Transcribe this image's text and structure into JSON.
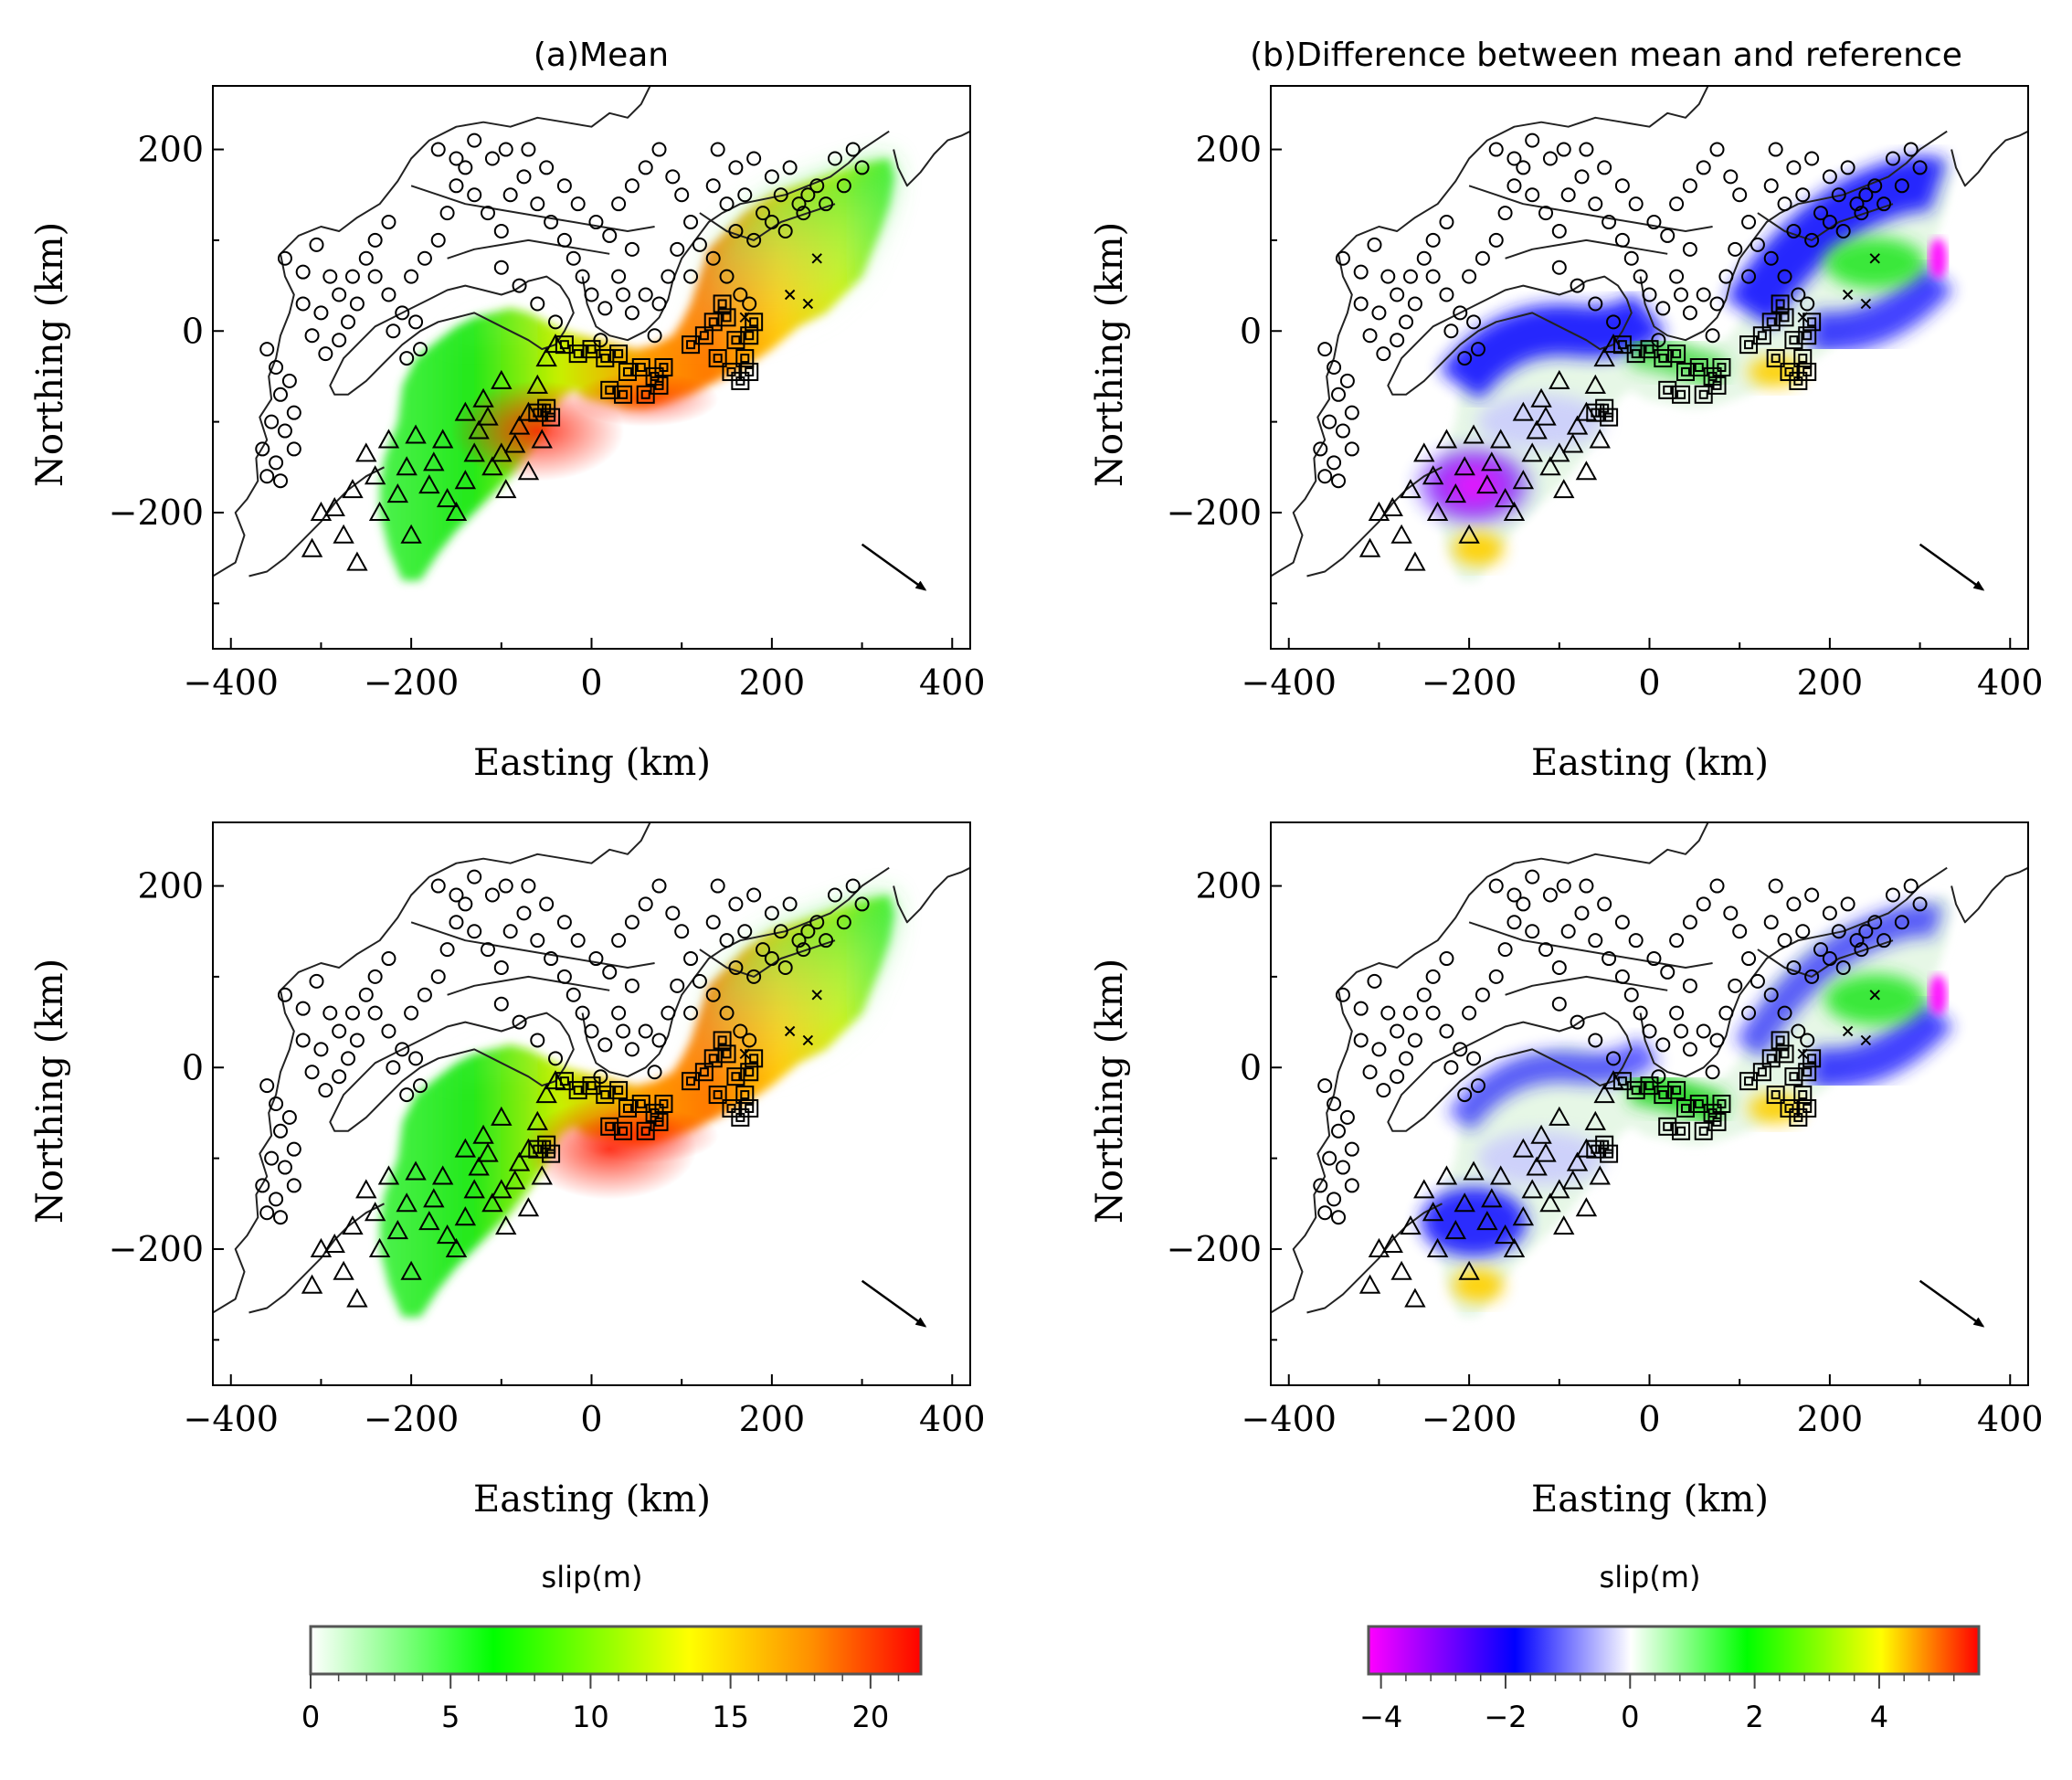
{
  "panels": [
    {
      "id": "mean-top",
      "title": "(a)Mean",
      "xlabel": "Easting (km)",
      "ylabel": "Northing (km)",
      "kind": "mean"
    },
    {
      "id": "diff-top",
      "title": "(b)Difference between mean and reference",
      "xlabel": "Easting (km)",
      "ylabel": "Northing (km)",
      "kind": "diff"
    },
    {
      "id": "mean-bottom",
      "title": "",
      "xlabel": "Easting (km)",
      "ylabel": "Northing (km)",
      "kind": "mean"
    },
    {
      "id": "diff-bottom",
      "title": "",
      "xlabel": "Easting (km)",
      "ylabel": "Northing (km)",
      "kind": "diff"
    }
  ],
  "colorbars": [
    {
      "id": "mean-colorbar",
      "label": "slip(m)",
      "min": 0,
      "max": 21.8,
      "ticks": [
        0,
        5,
        10,
        15,
        20
      ],
      "tick_labels": [
        "0",
        "5",
        "10",
        "15",
        "20"
      ],
      "colors": [
        "#ffffff",
        "#00ff00",
        "#ffff00",
        "#ff8000",
        "#ff0000"
      ]
    },
    {
      "id": "diff-colorbar",
      "label": "slip(m)",
      "min": -4.2,
      "max": 5.6,
      "ticks": [
        -4,
        -2,
        0,
        2,
        4
      ],
      "tick_labels": [
        "−4",
        "−2",
        "0",
        "2",
        "4"
      ],
      "colors": [
        "#ff00ff",
        "#0000ff",
        "#ffffff",
        "#00ff00",
        "#ffff00",
        "#ff0000"
      ]
    }
  ],
  "chart_data": [
    {
      "type": "heatmap",
      "title": "(a)Mean",
      "xlabel": "Easting (km)",
      "ylabel": "Northing (km)",
      "xlim": [
        -420,
        420
      ],
      "ylim": [
        -350,
        270
      ],
      "xticks": [
        -400,
        -200,
        0,
        200,
        400
      ],
      "xtick_labels": [
        "−400",
        "−200",
        "0",
        "200",
        "400"
      ],
      "yticks": [
        -200,
        0,
        200
      ],
      "ytick_labels": [
        "−200",
        "0",
        "200"
      ],
      "colorbar_label": "slip(m)",
      "color_range": [
        0,
        21.8
      ]
    },
    {
      "type": "heatmap",
      "title": "(b)Difference between mean and reference",
      "xlabel": "Easting (km)",
      "ylabel": "Northing (km)",
      "xlim": [
        -420,
        420
      ],
      "ylim": [
        -350,
        270
      ],
      "xticks": [
        -400,
        -200,
        0,
        200,
        400
      ],
      "xtick_labels": [
        "−400",
        "−200",
        "0",
        "200",
        "400"
      ],
      "yticks": [
        -200,
        0,
        200
      ],
      "ytick_labels": [
        "−200",
        "0",
        "200"
      ],
      "colorbar_label": "slip(m)",
      "color_range": [
        -4.2,
        5.6
      ]
    },
    {
      "type": "heatmap",
      "title": "",
      "xlabel": "Easting (km)",
      "ylabel": "Northing (km)",
      "xlim": [
        -420,
        420
      ],
      "ylim": [
        -350,
        270
      ],
      "xticks": [
        -400,
        -200,
        0,
        200,
        400
      ],
      "xtick_labels": [
        "−400",
        "−200",
        "0",
        "200",
        "400"
      ],
      "yticks": [
        -200,
        0,
        200
      ],
      "ytick_labels": [
        "−200",
        "0",
        "200"
      ],
      "colorbar_label": "slip(m)",
      "color_range": [
        0,
        21.8
      ]
    },
    {
      "type": "heatmap",
      "title": "",
      "xlabel": "Easting (km)",
      "ylabel": "Northing (km)",
      "xlim": [
        -420,
        420
      ],
      "ylim": [
        -350,
        270
      ],
      "xticks": [
        -400,
        -200,
        0,
        200,
        400
      ],
      "xtick_labels": [
        "−400",
        "−200",
        "0",
        "200",
        "400"
      ],
      "yticks": [
        -200,
        0,
        200
      ],
      "ytick_labels": [
        "−200",
        "0",
        "200"
      ],
      "colorbar_label": "slip(m)",
      "color_range": [
        -4.2,
        5.6
      ]
    }
  ],
  "slip_direction_arrow": {
    "from": [
      300,
      -235
    ],
    "to": [
      370,
      -285
    ]
  },
  "stations": {
    "circles": [
      [
        -360,
        -20
      ],
      [
        -350,
        -40
      ],
      [
        -345,
        -70
      ],
      [
        -335,
        -55
      ],
      [
        -330,
        -90
      ],
      [
        -355,
        -100
      ],
      [
        -340,
        -110
      ],
      [
        -330,
        -130
      ],
      [
        -360,
        -160
      ],
      [
        -345,
        -165
      ],
      [
        -365,
        -130
      ],
      [
        -350,
        -145
      ],
      [
        -340,
        80
      ],
      [
        -320,
        65
      ],
      [
        -305,
        95
      ],
      [
        -290,
        60
      ],
      [
        -280,
        40
      ],
      [
        -300,
        20
      ],
      [
        -320,
        30
      ],
      [
        -310,
        -5
      ],
      [
        -295,
        -25
      ],
      [
        -280,
        -10
      ],
      [
        -270,
        10
      ],
      [
        -260,
        30
      ],
      [
        -265,
        60
      ],
      [
        -250,
        80
      ],
      [
        -240,
        100
      ],
      [
        -225,
        120
      ],
      [
        -240,
        60
      ],
      [
        -225,
        40
      ],
      [
        -210,
        20
      ],
      [
        -220,
        0
      ],
      [
        -205,
        -30
      ],
      [
        -190,
        -20
      ],
      [
        -195,
        10
      ],
      [
        -200,
        60
      ],
      [
        -185,
        80
      ],
      [
        -170,
        100
      ],
      [
        -160,
        130
      ],
      [
        -150,
        160
      ],
      [
        -140,
        180
      ],
      [
        -130,
        150
      ],
      [
        -115,
        130
      ],
      [
        -100,
        110
      ],
      [
        -90,
        150
      ],
      [
        -75,
        170
      ],
      [
        -60,
        140
      ],
      [
        -45,
        120
      ],
      [
        -30,
        100
      ],
      [
        -20,
        80
      ],
      [
        -10,
        60
      ],
      [
        0,
        40
      ],
      [
        15,
        25
      ],
      [
        10,
        -10
      ],
      [
        -100,
        70
      ],
      [
        -80,
        50
      ],
      [
        -60,
        30
      ],
      [
        -40,
        10
      ],
      [
        -170,
        200
      ],
      [
        -150,
        190
      ],
      [
        -130,
        210
      ],
      [
        -110,
        190
      ],
      [
        -95,
        200
      ],
      [
        -70,
        200
      ],
      [
        -50,
        180
      ],
      [
        -30,
        160
      ],
      [
        -15,
        140
      ],
      [
        5,
        120
      ],
      [
        20,
        105
      ],
      [
        30,
        140
      ],
      [
        45,
        160
      ],
      [
        60,
        180
      ],
      [
        75,
        200
      ],
      [
        90,
        170
      ],
      [
        100,
        150
      ],
      [
        110,
        120
      ],
      [
        120,
        95
      ],
      [
        135,
        80
      ],
      [
        150,
        60
      ],
      [
        165,
        40
      ],
      [
        175,
        30
      ],
      [
        45,
        20
      ],
      [
        60,
        40
      ],
      [
        70,
        -5
      ],
      [
        75,
        30
      ],
      [
        85,
        60
      ],
      [
        95,
        90
      ],
      [
        110,
        60
      ],
      [
        30,
        60
      ],
      [
        45,
        90
      ],
      [
        35,
        40
      ],
      [
        140,
        200
      ],
      [
        160,
        180
      ],
      [
        180,
        190
      ],
      [
        200,
        170
      ],
      [
        220,
        180
      ],
      [
        240,
        150
      ],
      [
        260,
        140
      ],
      [
        280,
        160
      ],
      [
        290,
        200
      ],
      [
        300,
        180
      ],
      [
        270,
        190
      ],
      [
        250,
        160
      ],
      [
        230,
        140
      ],
      [
        210,
        150
      ],
      [
        190,
        130
      ],
      [
        170,
        150
      ],
      [
        150,
        140
      ],
      [
        135,
        160
      ],
      [
        160,
        110
      ],
      [
        180,
        100
      ],
      [
        200,
        120
      ],
      [
        215,
        110
      ],
      [
        235,
        130
      ]
    ],
    "triangles": [
      [
        -300,
        -200
      ],
      [
        -310,
        -240
      ],
      [
        -285,
        -195
      ],
      [
        -275,
        -225
      ],
      [
        -265,
        -175
      ],
      [
        -260,
        -255
      ],
      [
        -250,
        -135
      ],
      [
        -240,
        -160
      ],
      [
        -235,
        -200
      ],
      [
        -225,
        -120
      ],
      [
        -215,
        -180
      ],
      [
        -205,
        -150
      ],
      [
        -200,
        -225
      ],
      [
        -195,
        -115
      ],
      [
        -180,
        -170
      ],
      [
        -175,
        -145
      ],
      [
        -165,
        -120
      ],
      [
        -160,
        -185
      ],
      [
        -150,
        -200
      ],
      [
        -140,
        -165
      ],
      [
        -130,
        -135
      ],
      [
        -125,
        -110
      ],
      [
        -115,
        -95
      ],
      [
        -110,
        -150
      ],
      [
        -100,
        -135
      ],
      [
        -95,
        -175
      ],
      [
        -85,
        -125
      ],
      [
        -80,
        -105
      ],
      [
        -70,
        -90
      ],
      [
        -60,
        -60
      ],
      [
        -50,
        -30
      ],
      [
        -40,
        -15
      ],
      [
        -120,
        -75
      ],
      [
        -100,
        -55
      ],
      [
        -70,
        -155
      ],
      [
        -55,
        -120
      ],
      [
        -140,
        -90
      ]
    ],
    "squares": [
      [
        -30,
        -15
      ],
      [
        -15,
        -25
      ],
      [
        0,
        -20
      ],
      [
        15,
        -30
      ],
      [
        30,
        -25
      ],
      [
        40,
        -45
      ],
      [
        55,
        -40
      ],
      [
        70,
        -50
      ],
      [
        80,
        -40
      ],
      [
        20,
        -65
      ],
      [
        35,
        -70
      ],
      [
        60,
        -70
      ],
      [
        75,
        -60
      ],
      [
        110,
        -15
      ],
      [
        125,
        -5
      ],
      [
        135,
        10
      ],
      [
        145,
        30
      ],
      [
        150,
        15
      ],
      [
        160,
        -10
      ],
      [
        170,
        -30
      ],
      [
        175,
        -5
      ],
      [
        180,
        10
      ],
      [
        140,
        -30
      ],
      [
        155,
        -45
      ],
      [
        165,
        -55
      ],
      [
        175,
        -45
      ],
      [
        -60,
        -90
      ],
      [
        -50,
        -85
      ],
      [
        -45,
        -95
      ]
    ],
    "crosses": [
      [
        170,
        15
      ],
      [
        220,
        40
      ],
      [
        240,
        30
      ],
      [
        250,
        80
      ]
    ]
  }
}
